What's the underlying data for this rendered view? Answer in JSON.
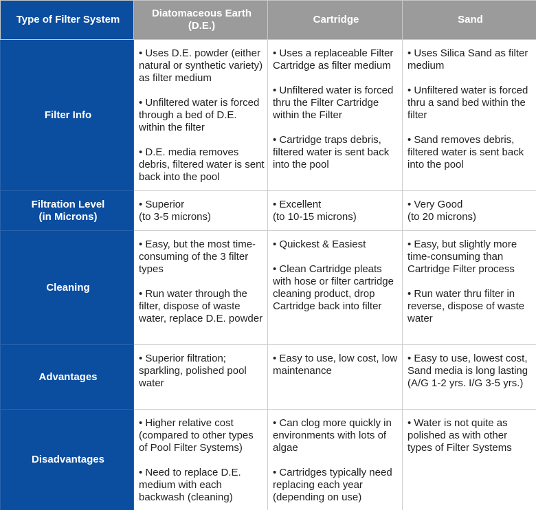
{
  "table": {
    "header": [
      "Type of Filter System",
      "Diatomaceous Earth\n(D.E.)",
      "Cartridge",
      "Sand"
    ],
    "rows": [
      {
        "label": "Filter Info",
        "cells": [
          [
            "• Uses D.E. powder (either natural or synthetic variety) as filter medium",
            "• Unfiltered water is forced through a bed of D.E. within the filter",
            "• D.E. media removes debris, filtered water is sent back into the pool"
          ],
          [
            "• Uses a replaceable Filter Cartridge as filter medium",
            "• Unfiltered water is forced thru the Filter Cartridge within the Filter",
            "• Cartridge traps debris, filtered water is sent back into the pool"
          ],
          [
            "• Uses Silica Sand as filter medium",
            "• Unfiltered water is forced thru a sand bed within the filter",
            "• Sand removes debris, filtered water is sent back into the pool"
          ]
        ]
      },
      {
        "label": "Filtration Level\n(in Microns)",
        "cells": [
          [
            "• Superior\n(to 3-5 microns)"
          ],
          [
            "• Excellent\n(to 10-15 microns)"
          ],
          [
            "• Very Good\n(to 20 microns)"
          ]
        ]
      },
      {
        "label": "Cleaning",
        "cells": [
          [
            "• Easy, but the most time-consuming of the 3 filter types",
            "• Run water through the filter, dispose of waste water, replace D.E. powder"
          ],
          [
            "• Quickest & Easiest",
            "• Clean Cartridge pleats with hose or filter cartridge cleaning product, drop Cartridge back into filter"
          ],
          [
            "• Easy, but slightly more time-consuming than Cartridge Filter process",
            "• Run water thru filter in reverse, dispose of waste water"
          ]
        ]
      },
      {
        "label": "Advantages",
        "cells": [
          [
            "• Superior filtration; sparkling, polished pool water"
          ],
          [
            "• Easy to use, low cost, low maintenance"
          ],
          [
            "• Easy to use, lowest cost, Sand media is long lasting (A/G 1-2 yrs. I/G 3-5 yrs.)"
          ]
        ]
      },
      {
        "label": "Disadvantages",
        "cells": [
          [
            "• Higher relative cost (compared to other types of Pool Filter Systems)",
            "• Need to replace D.E. medium with each backwash (cleaning)"
          ],
          [
            "• Can clog more quickly in environments with lots of algae",
            "• Cartridges typically need replacing each year (depending on use)"
          ],
          [
            "• Water is not quite as polished as with other types of Filter Systems"
          ]
        ]
      }
    ]
  }
}
